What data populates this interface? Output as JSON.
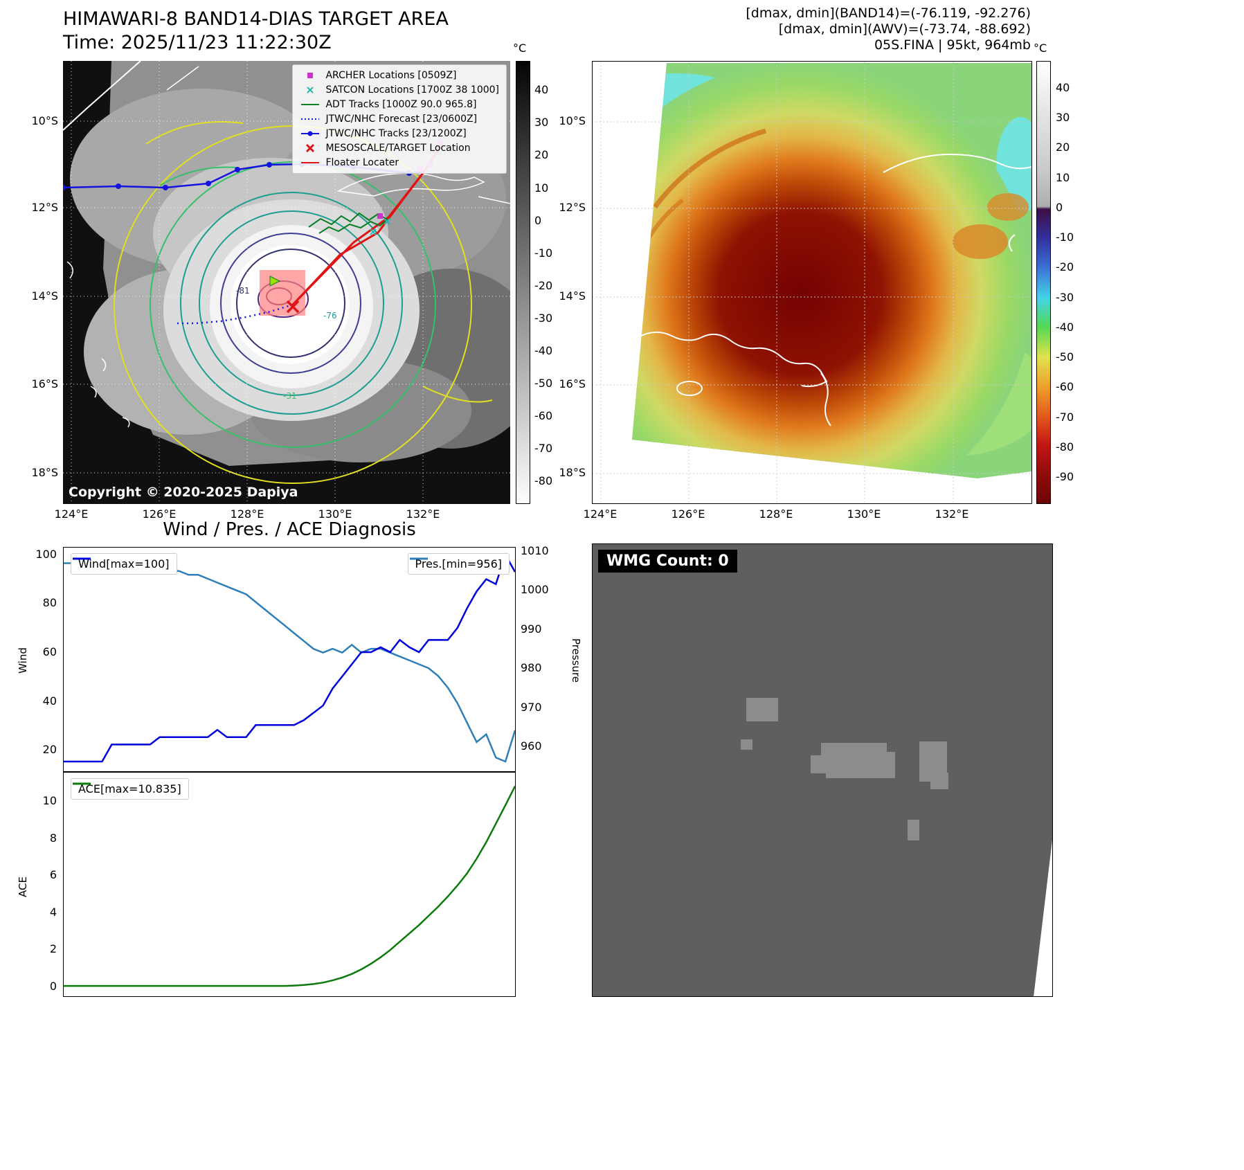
{
  "top_left": {
    "title": "HIMAWARI-8 BAND14-DIAS TARGET AREA",
    "time_label": "Time: 2025/11/23 11:22:30Z",
    "copyright": "Copyright © 2020-2025 Dapiya",
    "colorbar_unit": "°C",
    "colorbar_ticks": [
      40,
      30,
      20,
      10,
      0,
      -10,
      -20,
      -30,
      -40,
      -50,
      -60,
      -70,
      -80
    ],
    "lat_ticks": [
      "10°S",
      "12°S",
      "14°S",
      "16°S",
      "18°S"
    ],
    "lon_ticks": [
      "124°E",
      "126°E",
      "128°E",
      "130°E",
      "132°E"
    ],
    "contour_labels": [
      "-81",
      "-76",
      "-31"
    ],
    "legend": [
      {
        "label": "ARCHER Locations [0509Z]",
        "marker": "square",
        "color": "#cc33cc"
      },
      {
        "label": "SATCON Locations [1700Z 38 1000]",
        "marker": "x",
        "color": "#26b8b0"
      },
      {
        "label": "ADT Tracks [1000Z 90.0 965.8]",
        "marker": "line",
        "color": "#087f23"
      },
      {
        "label": "JTWC/NHC Forecast [23/0600Z]",
        "marker": "dotted",
        "color": "#1414e0"
      },
      {
        "label": "JTWC/NHC Tracks [23/1200Z]",
        "marker": "line-dot",
        "color": "#1414e0"
      },
      {
        "label": "MESOSCALE/TARGET Location",
        "marker": "X",
        "color": "#e01414"
      },
      {
        "label": "Floater Locater",
        "marker": "line",
        "color": "#e01414"
      }
    ]
  },
  "top_right": {
    "header_lines": [
      "[dmax, dmin](BAND14)=(-76.119, -92.276)",
      "[dmax, dmin](AWV)=(-73.74, -88.692)",
      "05S.FINA | 95kt, 964mb"
    ],
    "colorbar_unit": "°C",
    "colorbar_ticks": [
      40,
      30,
      20,
      10,
      0,
      -10,
      -20,
      -30,
      -40,
      -50,
      -60,
      -70,
      -80,
      -90
    ],
    "lat_ticks": [
      "10°S",
      "12°S",
      "14°S",
      "16°S",
      "18°S"
    ],
    "lon_ticks": [
      "124°E",
      "126°E",
      "128°E",
      "130°E",
      "132°E"
    ]
  },
  "bottom_right": {
    "wmg_label": "WMG Count: 0"
  },
  "chart_data": [
    {
      "type": "line",
      "title": "Wind / Pres. / ACE Diagnosis",
      "x_mode": "index",
      "legend_position": "top-left / top-right",
      "grid": false,
      "series": [
        {
          "name": "Wind[max=100]",
          "ylabel": "Wind",
          "axis": "left",
          "color": "#0000dd",
          "ylim": [
            11,
            103
          ],
          "yticks": [
            20,
            40,
            60,
            80,
            100
          ],
          "values": [
            15,
            15,
            15,
            15,
            15,
            22,
            22,
            22,
            22,
            22,
            25,
            25,
            25,
            25,
            25,
            25,
            28,
            25,
            25,
            25,
            30,
            30,
            30,
            30,
            30,
            32,
            35,
            38,
            45,
            50,
            55,
            60,
            60,
            62,
            60,
            65,
            62,
            60,
            65,
            65,
            65,
            70,
            78,
            85,
            90,
            88,
            100,
            93
          ]
        },
        {
          "name": "Pres.[min=956]",
          "ylabel": "Pressure",
          "axis": "right",
          "color": "#2e7eb8",
          "ylim": [
            953.5,
            1011
          ],
          "yticks": [
            960,
            970,
            980,
            990,
            1000,
            1010
          ],
          "values": [
            1007,
            1007,
            1007,
            1007,
            1007,
            1006,
            1006,
            1006,
            1006,
            1005,
            1005,
            1005,
            1005,
            1004,
            1004,
            1003,
            1002,
            1001,
            1000,
            999,
            997,
            995,
            993,
            991,
            989,
            987,
            985,
            984,
            985,
            984,
            986,
            984,
            985,
            985,
            984,
            983,
            982,
            981,
            980,
            978,
            975,
            971,
            966,
            961,
            963,
            957,
            956,
            964
          ]
        }
      ]
    },
    {
      "type": "line",
      "x_mode": "index",
      "legend_position": "top-left",
      "grid": false,
      "series": [
        {
          "name": "ACE[max=10.835]",
          "ylabel": "ACE",
          "axis": "left",
          "color": "#0b7a0b",
          "ylim": [
            -0.56,
            11.57
          ],
          "yticks": [
            0,
            2,
            4,
            6,
            8,
            10
          ],
          "values": [
            0,
            0,
            0,
            0,
            0,
            0,
            0,
            0,
            0,
            0,
            0,
            0,
            0,
            0,
            0,
            0,
            0,
            0,
            0,
            0,
            0,
            0,
            0,
            0,
            0.02,
            0.05,
            0.1,
            0.18,
            0.3,
            0.45,
            0.65,
            0.9,
            1.2,
            1.55,
            1.95,
            2.4,
            2.85,
            3.3,
            3.8,
            4.3,
            4.85,
            5.45,
            6.1,
            6.9,
            7.8,
            8.8,
            9.8,
            10.835
          ]
        }
      ]
    }
  ]
}
